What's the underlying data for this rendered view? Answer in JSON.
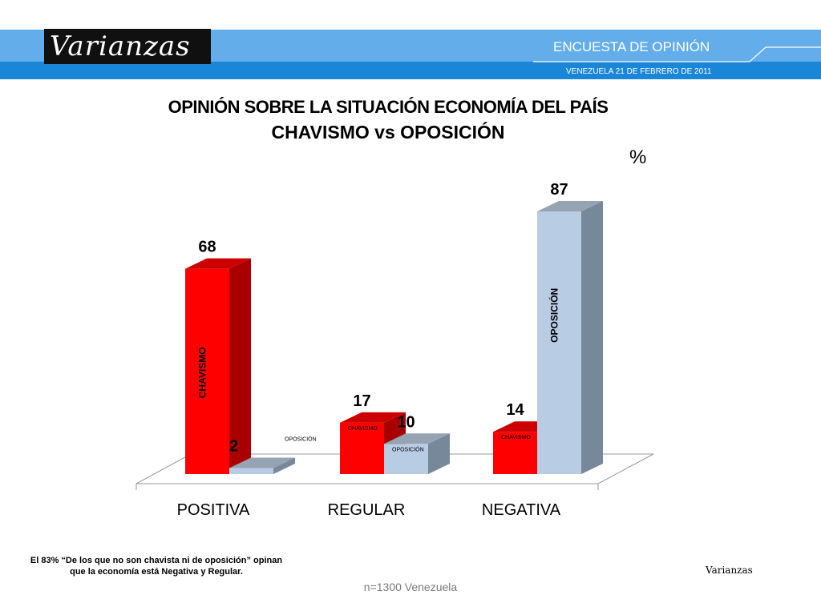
{
  "header": {
    "logo_text": "Varianzas",
    "survey_title": "ENCUESTA DE OPINIÓN",
    "survey_date": "VENEZUELA  21 DE  FEBRERO DE 2011"
  },
  "chart_data": {
    "type": "bar",
    "title": "OPINIÓN SOBRE LA SITUACIÓN ECONOMÍA DEL PAÍS",
    "subtitle": "CHAVISMO vs OPOSICIÓN",
    "unit": "%",
    "categories": [
      "POSITIVA",
      "REGULAR",
      "NEGATIVA"
    ],
    "series": [
      {
        "name": "CHAVISMO",
        "values": [
          68,
          17,
          14
        ],
        "color": "#ff0000",
        "side_color": "#a80000",
        "top_color": "#cc0000"
      },
      {
        "name": "OPOSICIÓN",
        "values": [
          2,
          10,
          87
        ],
        "color": "#b8cce4",
        "side_color": "#76889a",
        "top_color": "#95a3b3"
      }
    ],
    "ylim": [
      0,
      100
    ],
    "grid": false,
    "legend": "none"
  },
  "footnote": "El 83% “De los que no son chavista ni de oposición” opinan que la economía está Negativa y Regular.",
  "brand": "Varianzas",
  "sample": "n=1300  Venezuela"
}
